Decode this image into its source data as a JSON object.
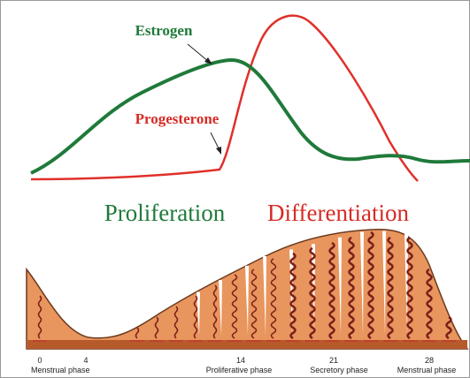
{
  "hormones": {
    "estrogen": "Estrogen",
    "progesterone": "Progesterone"
  },
  "stages": {
    "proliferation": "Proliferation",
    "differentiation": "Differentiation"
  },
  "days": [
    "0",
    "4",
    "14",
    "21",
    "28"
  ],
  "phases": [
    "Menstrual phase",
    "Proliferative phase",
    "Secretory phase",
    "Menstrual phase"
  ]
}
